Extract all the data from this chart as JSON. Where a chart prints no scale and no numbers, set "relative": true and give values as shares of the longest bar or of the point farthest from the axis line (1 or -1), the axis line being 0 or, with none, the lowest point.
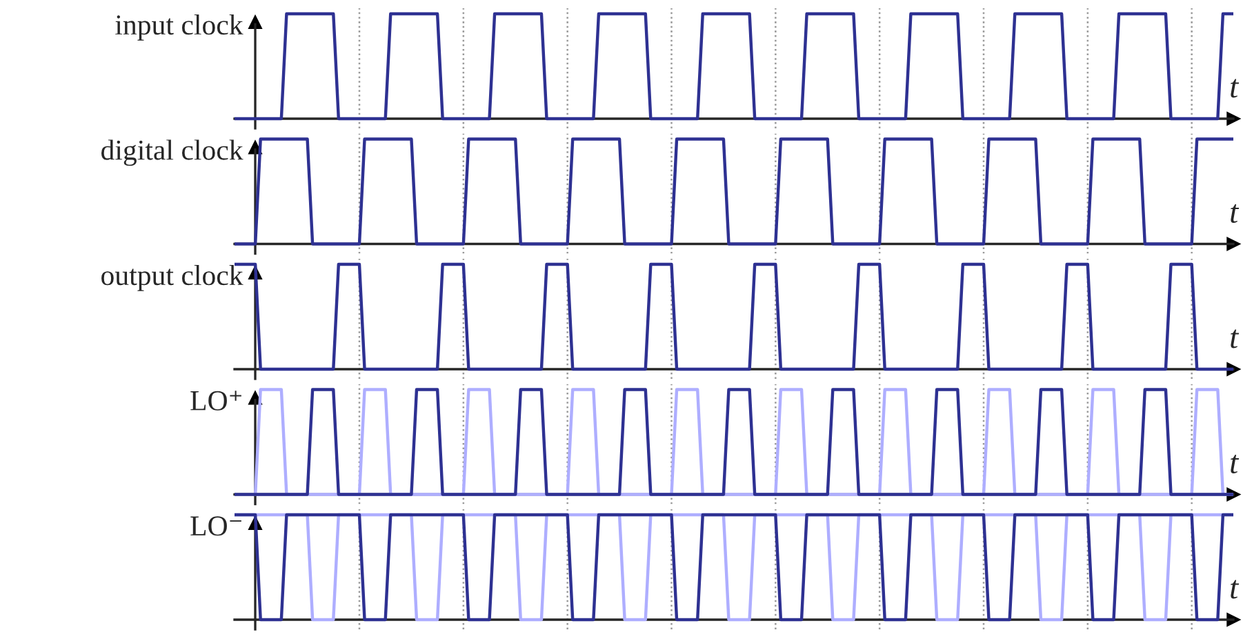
{
  "chart_data": [
    {
      "type": "line",
      "relative": true,
      "ylabel": "input clock",
      "xlabel": "t",
      "legend": false,
      "categories": [
        null,
        null,
        null,
        null,
        null,
        null,
        null,
        null,
        null,
        null,
        null,
        null,
        null,
        null,
        null,
        null,
        null,
        null,
        null,
        null,
        null,
        null,
        null,
        null,
        null,
        null,
        null,
        null,
        null,
        null,
        null,
        null,
        null,
        null,
        null,
        null,
        null,
        null,
        null,
        null,
        null,
        null,
        null,
        null,
        null,
        null,
        null,
        null,
        null,
        null,
        null,
        null,
        null,
        null,
        null,
        null,
        null,
        null,
        null,
        null,
        null,
        null,
        null,
        null,
        null,
        null,
        null,
        null,
        null,
        null,
        null,
        null,
        null,
        null,
        null,
        null,
        null,
        null,
        null,
        null,
        null,
        null,
        null,
        null,
        null,
        null,
        null,
        null,
        null,
        null,
        null,
        null,
        null,
        null,
        null,
        null,
        null,
        null,
        null,
        null,
        null,
        null,
        null,
        null,
        null,
        null,
        null,
        null,
        null,
        null,
        null,
        null,
        null,
        null,
        null,
        null,
        null,
        null,
        null,
        null,
        null,
        null,
        null,
        null,
        null,
        null,
        null,
        null,
        null,
        null,
        null,
        null,
        null,
        null,
        null,
        null,
        null,
        null,
        null,
        null,
        null,
        null,
        null,
        null,
        null,
        null,
        null,
        null,
        null,
        null,
        null,
        null,
        null,
        null,
        null,
        null,
        null,
        null,
        null,
        null,
        null,
        null,
        null,
        null,
        null,
        null,
        null,
        null,
        null,
        null,
        null,
        null,
        null,
        null,
        null,
        null,
        null,
        null,
        null,
        null,
        null,
        null,
        null,
        null,
        null,
        null,
        null,
        null,
        null,
        null,
        null,
        null,
        null
      ],
      "series": [
        {
          "color": "#2e3192",
          "values": [
            0,
            0,
            0,
            0,
            0,
            0,
            0,
            0,
            0,
            0,
            1,
            1,
            1,
            1,
            1,
            1,
            1,
            1,
            1,
            1,
            0,
            0,
            0,
            0,
            0,
            0,
            0,
            0,
            0,
            0,
            1,
            1,
            1,
            1,
            1,
            1,
            1,
            1,
            1,
            1,
            0,
            0,
            0,
            0,
            0,
            0,
            0,
            0,
            0,
            0,
            1,
            1,
            1,
            1,
            1,
            1,
            1,
            1,
            1,
            1,
            0,
            0,
            0,
            0,
            0,
            0,
            0,
            0,
            0,
            0,
            1,
            1,
            1,
            1,
            1,
            1,
            1,
            1,
            1,
            1,
            0,
            0,
            0,
            0,
            0,
            0,
            0,
            0,
            0,
            0,
            1,
            1,
            1,
            1,
            1,
            1,
            1,
            1,
            1,
            1,
            0,
            0,
            0,
            0,
            0,
            0,
            0,
            0,
            0,
            0,
            1,
            1,
            1,
            1,
            1,
            1,
            1,
            1,
            1,
            1,
            0,
            0,
            0,
            0,
            0,
            0,
            0,
            0,
            0,
            0,
            1,
            1,
            1,
            1,
            1,
            1,
            1,
            1,
            1,
            1,
            0,
            0,
            0,
            0,
            0,
            0,
            0,
            0,
            0,
            0,
            1,
            1,
            1,
            1,
            1,
            1,
            1,
            1,
            1,
            1,
            0,
            0,
            0,
            0,
            0,
            0,
            0,
            0,
            0,
            0,
            1,
            1,
            1,
            1,
            1,
            1,
            1,
            1,
            1,
            1,
            0,
            0,
            0,
            0,
            0,
            0,
            0,
            0,
            0,
            0,
            1,
            1,
            1
          ]
        }
      ]
    },
    {
      "type": "line",
      "relative": true,
      "ylabel": "digital clock",
      "xlabel": "t",
      "legend": false,
      "categories": [
        null,
        null,
        null,
        null,
        null,
        null,
        null,
        null,
        null,
        null,
        null,
        null,
        null,
        null,
        null,
        null,
        null,
        null,
        null,
        null,
        null,
        null,
        null,
        null,
        null,
        null,
        null,
        null,
        null,
        null,
        null,
        null,
        null,
        null,
        null,
        null,
        null,
        null,
        null,
        null,
        null,
        null,
        null,
        null,
        null,
        null,
        null,
        null,
        null,
        null,
        null,
        null,
        null,
        null,
        null,
        null,
        null,
        null,
        null,
        null,
        null,
        null,
        null,
        null,
        null,
        null,
        null,
        null,
        null,
        null,
        null,
        null,
        null,
        null,
        null,
        null,
        null,
        null,
        null,
        null,
        null,
        null,
        null,
        null,
        null,
        null,
        null,
        null,
        null,
        null,
        null,
        null,
        null,
        null,
        null,
        null,
        null,
        null,
        null,
        null,
        null,
        null,
        null,
        null,
        null,
        null,
        null,
        null,
        null,
        null,
        null,
        null,
        null,
        null,
        null,
        null,
        null,
        null,
        null,
        null,
        null,
        null,
        null,
        null,
        null,
        null,
        null,
        null,
        null,
        null,
        null,
        null,
        null,
        null,
        null,
        null,
        null,
        null,
        null,
        null,
        null,
        null,
        null,
        null,
        null,
        null,
        null,
        null,
        null,
        null,
        null,
        null,
        null,
        null,
        null,
        null,
        null,
        null,
        null,
        null,
        null,
        null,
        null,
        null,
        null,
        null,
        null,
        null,
        null,
        null,
        null,
        null,
        null,
        null,
        null,
        null,
        null,
        null,
        null,
        null,
        null,
        null,
        null,
        null,
        null,
        null,
        null,
        null,
        null,
        null,
        null,
        null,
        null
      ],
      "series": [
        {
          "color": "#2e3192",
          "values": [
            0,
            0,
            0,
            0,
            0,
            1,
            1,
            1,
            1,
            1,
            1,
            1,
            1,
            1,
            1,
            0,
            0,
            0,
            0,
            0,
            0,
            0,
            0,
            0,
            0,
            1,
            1,
            1,
            1,
            1,
            1,
            1,
            1,
            1,
            1,
            0,
            0,
            0,
            0,
            0,
            0,
            0,
            0,
            0,
            0,
            1,
            1,
            1,
            1,
            1,
            1,
            1,
            1,
            1,
            1,
            0,
            0,
            0,
            0,
            0,
            0,
            0,
            0,
            0,
            0,
            1,
            1,
            1,
            1,
            1,
            1,
            1,
            1,
            1,
            1,
            0,
            0,
            0,
            0,
            0,
            0,
            0,
            0,
            0,
            0,
            1,
            1,
            1,
            1,
            1,
            1,
            1,
            1,
            1,
            1,
            0,
            0,
            0,
            0,
            0,
            0,
            0,
            0,
            0,
            0,
            1,
            1,
            1,
            1,
            1,
            1,
            1,
            1,
            1,
            1,
            0,
            0,
            0,
            0,
            0,
            0,
            0,
            0,
            0,
            0,
            1,
            1,
            1,
            1,
            1,
            1,
            1,
            1,
            1,
            1,
            0,
            0,
            0,
            0,
            0,
            0,
            0,
            0,
            0,
            0,
            1,
            1,
            1,
            1,
            1,
            1,
            1,
            1,
            1,
            1,
            0,
            0,
            0,
            0,
            0,
            0,
            0,
            0,
            0,
            0,
            1,
            1,
            1,
            1,
            1,
            1,
            1,
            1,
            1,
            1,
            0,
            0,
            0,
            0,
            0,
            0,
            0,
            0,
            0,
            0,
            1,
            1,
            1,
            1,
            1,
            1,
            1,
            1
          ]
        }
      ]
    },
    {
      "type": "line",
      "relative": true,
      "ylabel": "output clock",
      "xlabel": "t",
      "legend": false,
      "categories": [
        null,
        null,
        null,
        null,
        null,
        null,
        null,
        null,
        null,
        null,
        null,
        null,
        null,
        null,
        null,
        null,
        null,
        null,
        null,
        null,
        null,
        null,
        null,
        null,
        null,
        null,
        null,
        null,
        null,
        null,
        null,
        null,
        null,
        null,
        null,
        null,
        null,
        null,
        null,
        null,
        null,
        null,
        null,
        null,
        null,
        null,
        null,
        null,
        null,
        null,
        null,
        null,
        null,
        null,
        null,
        null,
        null,
        null,
        null,
        null,
        null,
        null,
        null,
        null,
        null,
        null,
        null,
        null,
        null,
        null,
        null,
        null,
        null,
        null,
        null,
        null,
        null,
        null,
        null,
        null,
        null,
        null,
        null,
        null,
        null,
        null,
        null,
        null,
        null,
        null,
        null,
        null,
        null,
        null,
        null,
        null,
        null,
        null,
        null,
        null,
        null,
        null,
        null,
        null,
        null,
        null,
        null,
        null,
        null,
        null,
        null,
        null,
        null,
        null,
        null,
        null,
        null,
        null,
        null,
        null,
        null,
        null,
        null,
        null,
        null,
        null,
        null,
        null,
        null,
        null,
        null,
        null,
        null,
        null,
        null,
        null,
        null,
        null,
        null,
        null,
        null,
        null,
        null,
        null,
        null,
        null,
        null,
        null,
        null,
        null,
        null,
        null,
        null,
        null,
        null,
        null,
        null,
        null,
        null,
        null,
        null,
        null,
        null,
        null,
        null,
        null,
        null,
        null,
        null,
        null,
        null,
        null,
        null,
        null,
        null,
        null,
        null,
        null,
        null,
        null,
        null,
        null,
        null,
        null,
        null,
        null,
        null,
        null,
        null,
        null,
        null,
        null,
        null
      ],
      "series": [
        {
          "color": "#2e3192",
          "values": [
            1,
            1,
            1,
            1,
            1,
            0,
            0,
            0,
            0,
            0,
            0,
            0,
            0,
            0,
            0,
            0,
            0,
            0,
            0,
            0,
            1,
            1,
            1,
            1,
            1,
            0,
            0,
            0,
            0,
            0,
            0,
            0,
            0,
            0,
            0,
            0,
            0,
            0,
            0,
            0,
            1,
            1,
            1,
            1,
            1,
            0,
            0,
            0,
            0,
            0,
            0,
            0,
            0,
            0,
            0,
            0,
            0,
            0,
            0,
            0,
            1,
            1,
            1,
            1,
            1,
            0,
            0,
            0,
            0,
            0,
            0,
            0,
            0,
            0,
            0,
            0,
            0,
            0,
            0,
            0,
            1,
            1,
            1,
            1,
            1,
            0,
            0,
            0,
            0,
            0,
            0,
            0,
            0,
            0,
            0,
            0,
            0,
            0,
            0,
            0,
            1,
            1,
            1,
            1,
            1,
            0,
            0,
            0,
            0,
            0,
            0,
            0,
            0,
            0,
            0,
            0,
            0,
            0,
            0,
            0,
            1,
            1,
            1,
            1,
            1,
            0,
            0,
            0,
            0,
            0,
            0,
            0,
            0,
            0,
            0,
            0,
            0,
            0,
            0,
            0,
            1,
            1,
            1,
            1,
            1,
            0,
            0,
            0,
            0,
            0,
            0,
            0,
            0,
            0,
            0,
            0,
            0,
            0,
            0,
            0,
            1,
            1,
            1,
            1,
            1,
            0,
            0,
            0,
            0,
            0,
            0,
            0,
            0,
            0,
            0,
            0,
            0,
            0,
            0,
            0,
            1,
            1,
            1,
            1,
            1,
            0,
            0,
            0,
            0,
            0,
            0,
            0,
            0
          ]
        }
      ]
    },
    {
      "type": "line",
      "relative": true,
      "ylabel": "LO⁺",
      "xlabel": "t",
      "legend": false,
      "categories": [
        null,
        null,
        null,
        null,
        null,
        null,
        null,
        null,
        null,
        null,
        null,
        null,
        null,
        null,
        null,
        null,
        null,
        null,
        null,
        null,
        null,
        null,
        null,
        null,
        null,
        null,
        null,
        null,
        null,
        null,
        null,
        null,
        null,
        null,
        null,
        null,
        null,
        null,
        null,
        null,
        null,
        null,
        null,
        null,
        null,
        null,
        null,
        null,
        null,
        null,
        null,
        null,
        null,
        null,
        null,
        null,
        null,
        null,
        null,
        null,
        null,
        null,
        null,
        null,
        null,
        null,
        null,
        null,
        null,
        null,
        null,
        null,
        null,
        null,
        null,
        null,
        null,
        null,
        null,
        null,
        null,
        null,
        null,
        null,
        null,
        null,
        null,
        null,
        null,
        null,
        null,
        null,
        null,
        null,
        null,
        null,
        null,
        null,
        null,
        null,
        null,
        null,
        null,
        null,
        null,
        null,
        null,
        null,
        null,
        null,
        null,
        null,
        null,
        null,
        null,
        null,
        null,
        null,
        null,
        null,
        null,
        null,
        null,
        null,
        null,
        null,
        null,
        null,
        null,
        null,
        null,
        null,
        null,
        null,
        null,
        null,
        null,
        null,
        null,
        null,
        null,
        null,
        null,
        null,
        null,
        null,
        null,
        null,
        null,
        null,
        null,
        null,
        null,
        null,
        null,
        null,
        null,
        null,
        null,
        null,
        null,
        null,
        null,
        null,
        null,
        null,
        null,
        null,
        null,
        null,
        null,
        null,
        null,
        null,
        null,
        null,
        null,
        null,
        null,
        null,
        null,
        null,
        null,
        null,
        null,
        null,
        null,
        null,
        null,
        null,
        null,
        null,
        null
      ],
      "series": [
        {
          "color": "#aeaeff",
          "values": [
            null,
            null,
            null,
            null,
            0,
            1,
            1,
            1,
            1,
            1,
            0,
            0,
            0,
            0,
            0,
            0,
            0,
            0,
            0,
            0,
            0,
            0,
            0,
            0,
            0,
            1,
            1,
            1,
            1,
            1,
            0,
            0,
            0,
            0,
            0,
            0,
            0,
            0,
            0,
            0,
            0,
            0,
            0,
            0,
            0,
            1,
            1,
            1,
            1,
            1,
            0,
            0,
            0,
            0,
            0,
            0,
            0,
            0,
            0,
            0,
            0,
            0,
            0,
            0,
            0,
            1,
            1,
            1,
            1,
            1,
            0,
            0,
            0,
            0,
            0,
            0,
            0,
            0,
            0,
            0,
            0,
            0,
            0,
            0,
            0,
            1,
            1,
            1,
            1,
            1,
            0,
            0,
            0,
            0,
            0,
            0,
            0,
            0,
            0,
            0,
            0,
            0,
            0,
            0,
            0,
            1,
            1,
            1,
            1,
            1,
            0,
            0,
            0,
            0,
            0,
            0,
            0,
            0,
            0,
            0,
            0,
            0,
            0,
            0,
            0,
            1,
            1,
            1,
            1,
            1,
            0,
            0,
            0,
            0,
            0,
            0,
            0,
            0,
            0,
            0,
            0,
            0,
            0,
            0,
            0,
            1,
            1,
            1,
            1,
            1,
            0,
            0,
            0,
            0,
            0,
            0,
            0,
            0,
            0,
            0,
            0,
            0,
            0,
            0,
            0,
            1,
            1,
            1,
            1,
            1,
            0,
            0,
            0,
            0,
            0,
            0,
            0,
            0,
            0,
            0,
            0,
            0,
            0,
            0,
            0,
            1,
            1,
            1,
            1,
            1,
            0,
            0,
            0
          ]
        },
        {
          "color": "#2e3192",
          "values": [
            0,
            0,
            0,
            0,
            0,
            0,
            0,
            0,
            0,
            0,
            0,
            0,
            0,
            0,
            0,
            1,
            1,
            1,
            1,
            1,
            0,
            0,
            0,
            0,
            0,
            0,
            0,
            0,
            0,
            0,
            0,
            0,
            0,
            0,
            0,
            1,
            1,
            1,
            1,
            1,
            0,
            0,
            0,
            0,
            0,
            0,
            0,
            0,
            0,
            0,
            0,
            0,
            0,
            0,
            0,
            1,
            1,
            1,
            1,
            1,
            0,
            0,
            0,
            0,
            0,
            0,
            0,
            0,
            0,
            0,
            0,
            0,
            0,
            0,
            0,
            1,
            1,
            1,
            1,
            1,
            0,
            0,
            0,
            0,
            0,
            0,
            0,
            0,
            0,
            0,
            0,
            0,
            0,
            0,
            0,
            1,
            1,
            1,
            1,
            1,
            0,
            0,
            0,
            0,
            0,
            0,
            0,
            0,
            0,
            0,
            0,
            0,
            0,
            0,
            0,
            1,
            1,
            1,
            1,
            1,
            0,
            0,
            0,
            0,
            0,
            0,
            0,
            0,
            0,
            0,
            0,
            0,
            0,
            0,
            0,
            1,
            1,
            1,
            1,
            1,
            0,
            0,
            0,
            0,
            0,
            0,
            0,
            0,
            0,
            0,
            0,
            0,
            0,
            0,
            0,
            1,
            1,
            1,
            1,
            1,
            0,
            0,
            0,
            0,
            0,
            0,
            0,
            0,
            0,
            0,
            0,
            0,
            0,
            0,
            0,
            1,
            1,
            1,
            1,
            1,
            0,
            0,
            0,
            0,
            0,
            0,
            0,
            0,
            0,
            0,
            0,
            0,
            0
          ]
        }
      ]
    },
    {
      "type": "line",
      "relative": true,
      "ylabel": "LO⁻",
      "xlabel": "t",
      "legend": false,
      "categories": [
        null,
        null,
        null,
        null,
        null,
        null,
        null,
        null,
        null,
        null,
        null,
        null,
        null,
        null,
        null,
        null,
        null,
        null,
        null,
        null,
        null,
        null,
        null,
        null,
        null,
        null,
        null,
        null,
        null,
        null,
        null,
        null,
        null,
        null,
        null,
        null,
        null,
        null,
        null,
        null,
        null,
        null,
        null,
        null,
        null,
        null,
        null,
        null,
        null,
        null,
        null,
        null,
        null,
        null,
        null,
        null,
        null,
        null,
        null,
        null,
        null,
        null,
        null,
        null,
        null,
        null,
        null,
        null,
        null,
        null,
        null,
        null,
        null,
        null,
        null,
        null,
        null,
        null,
        null,
        null,
        null,
        null,
        null,
        null,
        null,
        null,
        null,
        null,
        null,
        null,
        null,
        null,
        null,
        null,
        null,
        null,
        null,
        null,
        null,
        null,
        null,
        null,
        null,
        null,
        null,
        null,
        null,
        null,
        null,
        null,
        null,
        null,
        null,
        null,
        null,
        null,
        null,
        null,
        null,
        null,
        null,
        null,
        null,
        null,
        null,
        null,
        null,
        null,
        null,
        null,
        null,
        null,
        null,
        null,
        null,
        null,
        null,
        null,
        null,
        null,
        null,
        null,
        null,
        null,
        null,
        null,
        null,
        null,
        null,
        null,
        null,
        null,
        null,
        null,
        null,
        null,
        null,
        null,
        null,
        null,
        null,
        null,
        null,
        null,
        null,
        null,
        null,
        null,
        null,
        null,
        null,
        null,
        null,
        null,
        null,
        null,
        null,
        null,
        null,
        null,
        null,
        null,
        null,
        null,
        null,
        null,
        null,
        null,
        null,
        null,
        null,
        null,
        null
      ],
      "series": [
        {
          "color": "#aeaeff",
          "values": [
            1,
            1,
            1,
            1,
            1,
            1,
            1,
            1,
            1,
            1,
            1,
            1,
            1,
            1,
            1,
            0,
            0,
            0,
            0,
            0,
            1,
            1,
            1,
            1,
            1,
            1,
            1,
            1,
            1,
            1,
            1,
            1,
            1,
            1,
            1,
            0,
            0,
            0,
            0,
            0,
            1,
            1,
            1,
            1,
            1,
            1,
            1,
            1,
            1,
            1,
            1,
            1,
            1,
            1,
            1,
            0,
            0,
            0,
            0,
            0,
            1,
            1,
            1,
            1,
            1,
            1,
            1,
            1,
            1,
            1,
            1,
            1,
            1,
            1,
            1,
            0,
            0,
            0,
            0,
            0,
            1,
            1,
            1,
            1,
            1,
            1,
            1,
            1,
            1,
            1,
            1,
            1,
            1,
            1,
            1,
            0,
            0,
            0,
            0,
            0,
            1,
            1,
            1,
            1,
            1,
            1,
            1,
            1,
            1,
            1,
            1,
            1,
            1,
            1,
            1,
            0,
            0,
            0,
            0,
            0,
            1,
            1,
            1,
            1,
            1,
            1,
            1,
            1,
            1,
            1,
            1,
            1,
            1,
            1,
            1,
            0,
            0,
            0,
            0,
            0,
            1,
            1,
            1,
            1,
            1,
            1,
            1,
            1,
            1,
            1,
            1,
            1,
            1,
            1,
            1,
            0,
            0,
            0,
            0,
            0,
            1,
            1,
            1,
            1,
            1,
            1,
            1,
            1,
            1,
            1,
            1,
            1,
            1,
            1,
            1,
            0,
            0,
            0,
            0,
            0,
            1,
            1,
            1,
            1,
            1,
            1,
            1,
            1,
            1,
            1,
            1,
            1,
            1
          ]
        },
        {
          "color": "#2e3192",
          "values": [
            1,
            1,
            1,
            1,
            1,
            0,
            0,
            0,
            0,
            0,
            1,
            1,
            1,
            1,
            1,
            1,
            1,
            1,
            1,
            1,
            1,
            1,
            1,
            1,
            1,
            0,
            0,
            0,
            0,
            0,
            1,
            1,
            1,
            1,
            1,
            1,
            1,
            1,
            1,
            1,
            1,
            1,
            1,
            1,
            1,
            0,
            0,
            0,
            0,
            0,
            1,
            1,
            1,
            1,
            1,
            1,
            1,
            1,
            1,
            1,
            1,
            1,
            1,
            1,
            1,
            0,
            0,
            0,
            0,
            0,
            1,
            1,
            1,
            1,
            1,
            1,
            1,
            1,
            1,
            1,
            1,
            1,
            1,
            1,
            1,
            0,
            0,
            0,
            0,
            0,
            1,
            1,
            1,
            1,
            1,
            1,
            1,
            1,
            1,
            1,
            1,
            1,
            1,
            1,
            1,
            0,
            0,
            0,
            0,
            0,
            1,
            1,
            1,
            1,
            1,
            1,
            1,
            1,
            1,
            1,
            1,
            1,
            1,
            1,
            1,
            0,
            0,
            0,
            0,
            0,
            1,
            1,
            1,
            1,
            1,
            1,
            1,
            1,
            1,
            1,
            1,
            1,
            1,
            1,
            1,
            0,
            0,
            0,
            0,
            0,
            1,
            1,
            1,
            1,
            1,
            1,
            1,
            1,
            1,
            1,
            1,
            1,
            1,
            1,
            1,
            0,
            0,
            0,
            0,
            0,
            1,
            1,
            1,
            1,
            1,
            1,
            1,
            1,
            1,
            1,
            1,
            1,
            1,
            1,
            1,
            0,
            0,
            0,
            0,
            0,
            1,
            1,
            1
          ]
        }
      ]
    }
  ]
}
